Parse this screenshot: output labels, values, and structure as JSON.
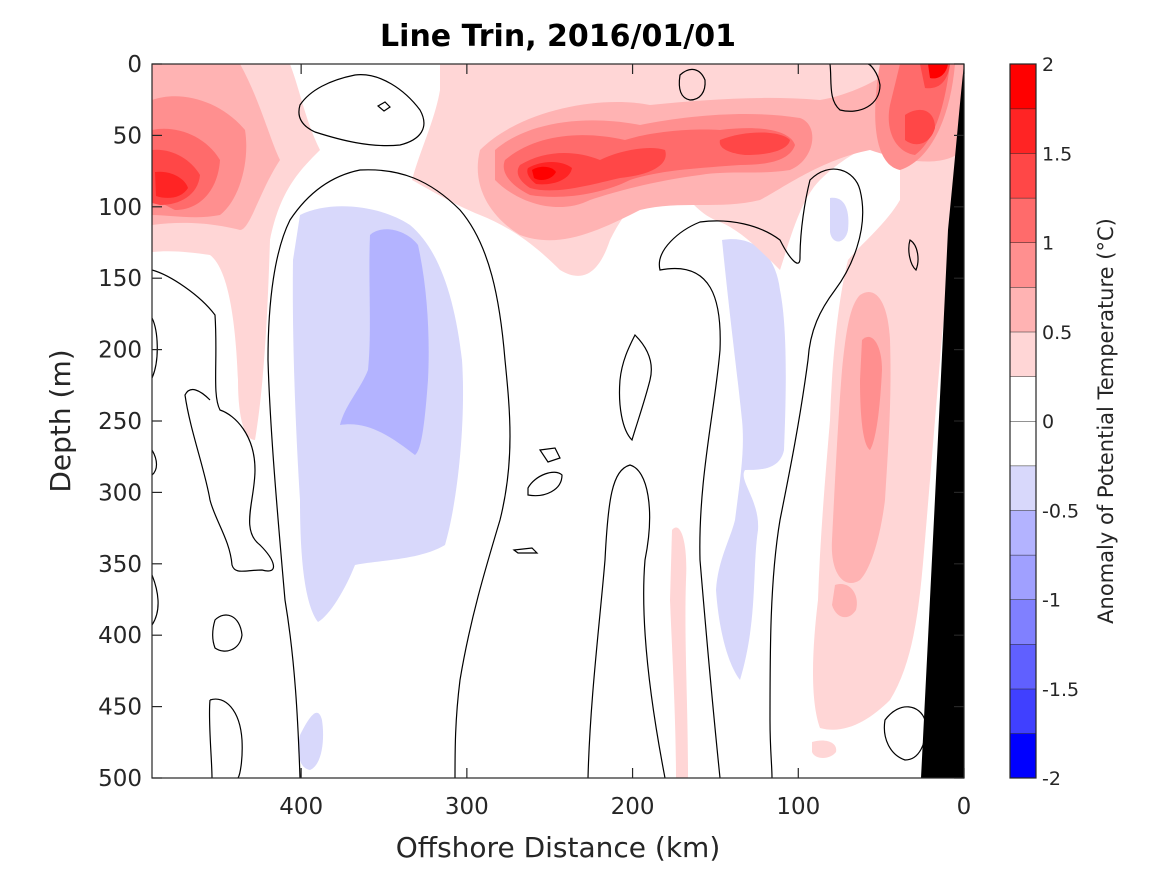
{
  "chart_data": {
    "type": "heatmap",
    "subtype": "filled-contour-section",
    "title": "Line Trin, 2016/01/01",
    "xlabel": "Offshore Distance (km)",
    "ylabel": "Depth (m)",
    "xlim": [
      490,
      0
    ],
    "ylim": [
      0,
      500
    ],
    "x_reversed": true,
    "y_reversed": true,
    "x_ticks": [
      400,
      300,
      200,
      100,
      0
    ],
    "x_ticklabels": [
      "400",
      "300",
      "200",
      "100",
      "0"
    ],
    "y_ticks": [
      0,
      50,
      100,
      150,
      200,
      250,
      300,
      350,
      400,
      450,
      500
    ],
    "y_ticklabels": [
      "0",
      "50",
      "100",
      "150",
      "200",
      "250",
      "300",
      "350",
      "400",
      "450",
      "500"
    ],
    "colorbar": {
      "label": "Anomaly of Potential Temperature (°C)",
      "lim": [
        -2,
        2
      ],
      "ticks": [
        2,
        1.5,
        1,
        0.5,
        0,
        -0.5,
        -1,
        -1.5,
        -2
      ],
      "ticklabels": [
        "2",
        "1.5",
        "1",
        "0.5",
        "0",
        "-0.5",
        "-1",
        "-1.5",
        "-2"
      ],
      "levels": [
        -2,
        -1.75,
        -1.5,
        -1.25,
        -1,
        -0.75,
        -0.5,
        -0.25,
        0.25,
        0.5,
        0.75,
        1,
        1.25,
        1.5,
        1.75,
        2
      ],
      "colors": [
        "#0000ff",
        "#2020ff",
        "#4040ff",
        "#6060ff",
        "#8080ff",
        "#a0a0ff",
        "#b3b3ff",
        "#d8d8fb",
        "#ffffff",
        "#ffd6d6",
        "#ffb3b3",
        "#ff8f8f",
        "#ff6b6b",
        "#ff4747",
        "#ff2424",
        "#ff0000"
      ]
    },
    "features": [
      {
        "name": "warm core near-surface west",
        "x": [
          490,
          400
        ],
        "depth": [
          40,
          120
        ],
        "max_anomaly": 1.75
      },
      {
        "name": "warm core subsurface 250 km",
        "x": [
          280,
          190
        ],
        "depth": [
          50,
          100
        ],
        "max_anomaly": 2
      },
      {
        "name": "warm core subsurface 120 km",
        "x": [
          150,
          100
        ],
        "depth": [
          40,
          80
        ],
        "max_anomaly": 1.5
      },
      {
        "name": "warm core near-shore surface",
        "x": [
          60,
          0
        ],
        "depth": [
          0,
          80
        ],
        "max_anomaly": 2
      },
      {
        "name": "cool anomaly 350 km",
        "x": [
          400,
          300
        ],
        "depth": [
          100,
          390
        ],
        "min_anomaly": -0.5
      },
      {
        "name": "cool anomaly 120 km",
        "x": [
          165,
          100
        ],
        "depth": [
          120,
          450
        ],
        "min_anomaly": -0.25
      },
      {
        "name": "warm nearshore column",
        "x": [
          100,
          20
        ],
        "depth": [
          150,
          480
        ],
        "max_anomaly": 0.75
      }
    ],
    "mask": {
      "name": "bathymetry",
      "color": "#000000"
    },
    "colors": {
      "zero_contour": "#000000",
      "background": "#ffffff"
    }
  }
}
